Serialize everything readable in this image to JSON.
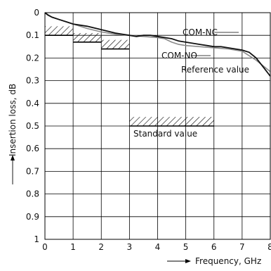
{
  "chart_data": {
    "type": "line",
    "xlabel": "Frequency, GHz",
    "ylabel": "Insertion loss, dB",
    "xlim": [
      0,
      8
    ],
    "ylim": [
      0,
      1
    ],
    "y_inverted": true,
    "grid": true,
    "x_ticks": [
      "0",
      "1",
      "2",
      "3",
      "4",
      "5",
      "6",
      "7",
      "8"
    ],
    "y_ticks": [
      "0",
      "0.1",
      "0.2",
      "0.3",
      "0.4",
      "0.5",
      "0.6",
      "0.7",
      "0.8",
      "0.9",
      "1"
    ],
    "series": [
      {
        "name": "COM-NC",
        "color": "#111111",
        "x": [
          0,
          0.1,
          0.25,
          0.5,
          0.75,
          1,
          1.5,
          2,
          2.5,
          2.75,
          3,
          3.25,
          3.5,
          3.75,
          4,
          4.25,
          4.5,
          4.75,
          5,
          5.25,
          5.5,
          5.75,
          6,
          6.25,
          6.5,
          6.75,
          7,
          7.25,
          7.5,
          7.75,
          8
        ],
        "y": [
          0.0,
          0.01,
          0.02,
          0.03,
          0.04,
          0.05,
          0.06,
          0.075,
          0.09,
          0.095,
          0.1,
          0.105,
          0.1,
          0.1,
          0.105,
          0.11,
          0.115,
          0.125,
          0.13,
          0.135,
          0.14,
          0.145,
          0.15,
          0.15,
          0.155,
          0.16,
          0.165,
          0.175,
          0.2,
          0.24,
          0.28
        ]
      },
      {
        "name": "COM-NO",
        "color": "#8a8a8a",
        "x": [
          0,
          0.25,
          0.5,
          1,
          1.5,
          2,
          2.5,
          3,
          3.5,
          4,
          4.25,
          4.5,
          4.75,
          5,
          5.5,
          6,
          6.5,
          7,
          7.5,
          8
        ],
        "y": [
          0.0,
          0.02,
          0.03,
          0.05,
          0.07,
          0.085,
          0.095,
          0.1,
          0.105,
          0.11,
          0.115,
          0.13,
          0.14,
          0.145,
          0.15,
          0.155,
          0.16,
          0.17,
          0.21,
          0.26
        ]
      }
    ],
    "standard_value_bands": [
      {
        "x": [
          0,
          1
        ],
        "y": [
          0.06,
          0.1
        ]
      },
      {
        "x": [
          1,
          2
        ],
        "y": [
          0.09,
          0.13
        ]
      },
      {
        "x": [
          2,
          3
        ],
        "y": [
          0.12,
          0.16
        ]
      },
      {
        "x": [
          3,
          6
        ],
        "y": [
          0.46,
          0.5
        ]
      }
    ],
    "annotations": {
      "com_nc": "COM-NC",
      "com_no": "COM-NO",
      "reference": "Reference value",
      "standard": "Standard value"
    }
  }
}
